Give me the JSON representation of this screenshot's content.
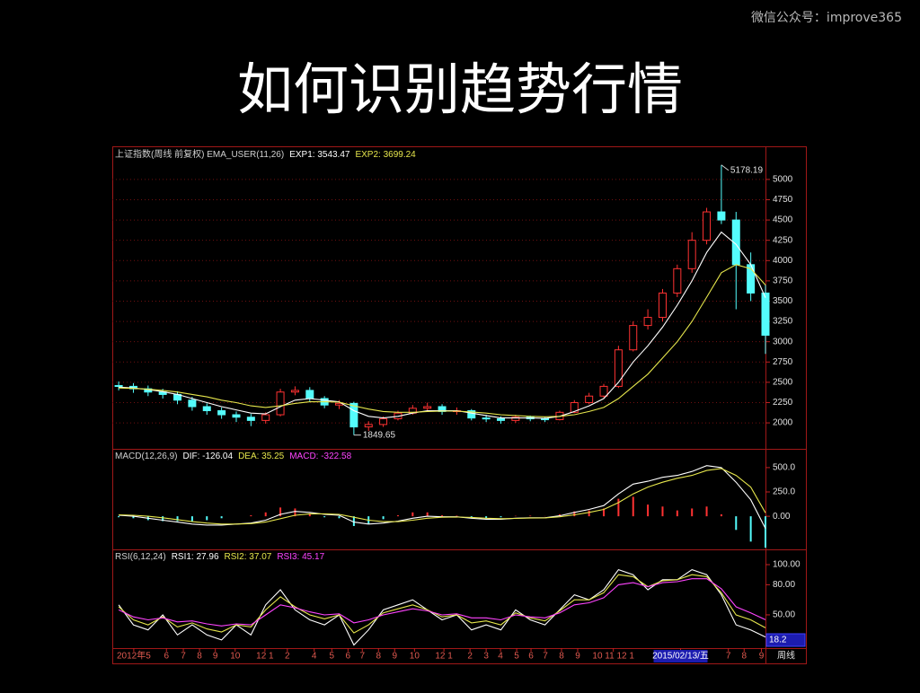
{
  "watermark": "微信公众号：improve365",
  "title": "如何识别趋势行情",
  "chart_data": [
    {
      "type": "candlestick",
      "title": "上证指数(周线 前复权) EMA_USER(11,26)",
      "x": [
        0,
        4,
        8,
        12,
        16,
        20,
        24,
        28,
        32,
        36,
        40,
        44,
        48,
        52,
        56,
        60,
        64,
        68,
        72,
        76,
        80,
        84,
        88,
        92,
        96,
        100,
        104,
        108,
        112,
        116,
        120,
        124,
        128,
        132,
        136,
        140,
        144,
        148,
        152,
        156,
        160,
        164,
        168,
        172,
        176
      ],
      "xlim": [
        -1,
        176
      ],
      "ylim": [
        1680,
        5220
      ],
      "yticks": [
        2000,
        2250,
        2500,
        2750,
        3000,
        3250,
        3500,
        3750,
        4000,
        4250,
        4500,
        4750,
        5000
      ],
      "grid": true,
      "candles": {
        "up_color": "#ff3232",
        "down_color": "#54fcfc",
        "open": [
          2460,
          2450,
          2420,
          2380,
          2350,
          2280,
          2200,
          2150,
          2100,
          2070,
          2030,
          2100,
          2380,
          2400,
          2300,
          2220,
          2240,
          1950,
          1980,
          2050,
          2120,
          2180,
          2200,
          2140,
          2150,
          2060,
          2050,
          2030,
          2070,
          2050,
          2040,
          2130,
          2250,
          2330,
          2450,
          2900,
          3200,
          3300,
          3600,
          3900,
          4250,
          4600,
          4500,
          3950,
          3600
        ],
        "high": [
          2510,
          2490,
          2460,
          2420,
          2390,
          2320,
          2240,
          2190,
          2140,
          2110,
          2130,
          2420,
          2450,
          2440,
          2330,
          2280,
          2260,
          2020,
          2080,
          2150,
          2220,
          2250,
          2230,
          2190,
          2170,
          2100,
          2080,
          2100,
          2090,
          2070,
          2150,
          2280,
          2370,
          2480,
          2950,
          3250,
          3400,
          3650,
          3950,
          4350,
          4650,
          5178.19,
          4600,
          4100,
          3700
        ],
        "low": [
          2400,
          2370,
          2330,
          2300,
          2230,
          2150,
          2100,
          2050,
          2010,
          1960,
          1990,
          2080,
          2340,
          2260,
          2180,
          2170,
          1849.65,
          1900,
          1950,
          2030,
          2100,
          2150,
          2100,
          2100,
          2030,
          2010,
          1990,
          2000,
          2020,
          2010,
          2030,
          2120,
          2230,
          2310,
          2430,
          2880,
          3150,
          3250,
          3550,
          3850,
          4200,
          4450,
          3400,
          3500,
          2850
        ],
        "close": [
          2450,
          2420,
          2380,
          2350,
          2280,
          2200,
          2150,
          2100,
          2070,
          2030,
          2100,
          2380,
          2400,
          2300,
          2220,
          2240,
          1950,
          1980,
          2050,
          2120,
          2180,
          2200,
          2140,
          2150,
          2060,
          2050,
          2030,
          2070,
          2050,
          2040,
          2130,
          2250,
          2330,
          2450,
          2900,
          3200,
          3300,
          3600,
          3900,
          4250,
          4600,
          4500,
          3950,
          3600,
          3080
        ]
      },
      "series": [
        {
          "name": "EXP1: 3543.47",
          "color": "#ffffff",
          "values": [
            2440,
            2430,
            2410,
            2385,
            2350,
            2300,
            2250,
            2200,
            2160,
            2120,
            2110,
            2200,
            2280,
            2300,
            2280,
            2260,
            2150,
            2080,
            2060,
            2080,
            2120,
            2150,
            2150,
            2150,
            2120,
            2090,
            2060,
            2060,
            2060,
            2055,
            2080,
            2140,
            2210,
            2300,
            2500,
            2750,
            2950,
            3180,
            3450,
            3750,
            4100,
            4350,
            4200,
            3950,
            3543.47
          ]
        },
        {
          "name": "EXP2: 3699.24",
          "color": "#e6e64c",
          "values": [
            2430,
            2425,
            2415,
            2400,
            2380,
            2350,
            2320,
            2280,
            2250,
            2210,
            2190,
            2210,
            2240,
            2260,
            2260,
            2255,
            2210,
            2170,
            2140,
            2130,
            2130,
            2140,
            2145,
            2145,
            2135,
            2120,
            2100,
            2090,
            2080,
            2075,
            2080,
            2100,
            2140,
            2190,
            2300,
            2450,
            2600,
            2800,
            3000,
            3250,
            3550,
            3850,
            3950,
            3900,
            3699.24
          ]
        }
      ],
      "max_label": "5178.19",
      "min_label": "1849.65"
    },
    {
      "type": "macd",
      "title": "MACD(12,26,9)",
      "x": [
        0,
        4,
        8,
        12,
        16,
        20,
        24,
        28,
        32,
        36,
        40,
        44,
        48,
        52,
        56,
        60,
        64,
        68,
        72,
        76,
        80,
        84,
        88,
        92,
        96,
        100,
        104,
        108,
        112,
        116,
        120,
        124,
        128,
        132,
        136,
        140,
        144,
        148,
        152,
        156,
        160,
        164,
        168,
        172,
        176
      ],
      "xlim": [
        -1,
        176
      ],
      "ylim": [
        -340,
        665
      ],
      "yticks": [
        {
          "value": 0,
          "label": "0.00"
        },
        {
          "value": 250,
          "label": "250.0"
        },
        {
          "value": 500,
          "label": "500.0"
        }
      ],
      "series": [
        {
          "name": "DIF: -126.04",
          "color": "#ffffff",
          "values": [
            10,
            0,
            -20,
            -40,
            -60,
            -80,
            -90,
            -90,
            -80,
            -70,
            -40,
            20,
            50,
            40,
            20,
            10,
            -60,
            -80,
            -70,
            -50,
            -20,
            0,
            -5,
            -5,
            -20,
            -30,
            -30,
            -20,
            -15,
            -15,
            5,
            40,
            70,
            110,
            230,
            330,
            360,
            400,
            420,
            460,
            520,
            500,
            350,
            170,
            -126.04
          ]
        },
        {
          "name": "DEA: 35.25",
          "color": "#e6e64c",
          "values": [
            15,
            10,
            0,
            -15,
            -35,
            -55,
            -70,
            -80,
            -80,
            -75,
            -60,
            -25,
            10,
            25,
            25,
            20,
            -10,
            -40,
            -55,
            -55,
            -40,
            -20,
            -10,
            -8,
            -12,
            -20,
            -25,
            -22,
            -18,
            -16,
            -5,
            15,
            40,
            70,
            140,
            230,
            300,
            350,
            390,
            420,
            470,
            490,
            420,
            300,
            35.25
          ]
        },
        {
          "name": "MACD: -322.58",
          "color": "#ff44ff",
          "bars": true,
          "up_color": "#ff3232",
          "down_color": "#54fcfc",
          "values": [
            -10,
            -20,
            -40,
            -50,
            -50,
            -50,
            -40,
            -20,
            0,
            10,
            40,
            90,
            80,
            30,
            -10,
            -20,
            -100,
            -80,
            -30,
            10,
            40,
            40,
            10,
            6,
            -16,
            -20,
            -10,
            4,
            6,
            2,
            20,
            50,
            60,
            80,
            180,
            200,
            120,
            100,
            60,
            80,
            100,
            20,
            -140,
            -260,
            -322.58
          ]
        }
      ]
    },
    {
      "type": "line",
      "title": "RSI(6,12,24)",
      "x": [
        0,
        4,
        8,
        12,
        16,
        20,
        24,
        28,
        32,
        36,
        40,
        44,
        48,
        52,
        56,
        60,
        64,
        68,
        72,
        76,
        80,
        84,
        88,
        92,
        96,
        100,
        104,
        108,
        112,
        116,
        120,
        124,
        128,
        132,
        136,
        140,
        144,
        148,
        152,
        156,
        160,
        164,
        168,
        172,
        176
      ],
      "xlim": [
        -1,
        176
      ],
      "ylim": [
        16.9,
        112.5
      ],
      "yticks": [
        {
          "value": 50,
          "label": "50.00"
        },
        {
          "value": 80,
          "label": "80.00"
        },
        {
          "value": 100,
          "label": "100.00"
        }
      ],
      "xticks": [
        {
          "value": 4.1,
          "label": "2012年5"
        },
        {
          "value": 13,
          "label": "6"
        },
        {
          "value": 17.6,
          "label": "7"
        },
        {
          "value": 22,
          "label": "8"
        },
        {
          "value": 26.3,
          "label": "9"
        },
        {
          "value": 31.7,
          "label": "10"
        },
        {
          "value": 39.8,
          "label": "12 1"
        },
        {
          "value": 45.9,
          "label": "2"
        },
        {
          "value": 53.2,
          "label": "4"
        },
        {
          "value": 58,
          "label": "5"
        },
        {
          "value": 62.4,
          "label": "6"
        },
        {
          "value": 66.3,
          "label": "7"
        },
        {
          "value": 70.7,
          "label": "8"
        },
        {
          "value": 75.1,
          "label": "9"
        },
        {
          "value": 80.5,
          "label": "10"
        },
        {
          "value": 88.5,
          "label": "12 1"
        },
        {
          "value": 95.6,
          "label": "2"
        },
        {
          "value": 100,
          "label": "3"
        },
        {
          "value": 103.9,
          "label": "4"
        },
        {
          "value": 108.3,
          "label": "5"
        },
        {
          "value": 112.2,
          "label": "6"
        },
        {
          "value": 116.1,
          "label": "7"
        },
        {
          "value": 120.5,
          "label": "8"
        },
        {
          "value": 124.9,
          "label": "9"
        },
        {
          "value": 134.6,
          "label": "10 11 12 1"
        },
        {
          "value": 152.9,
          "label": "2015/02/13/五",
          "highlight": true
        },
        {
          "value": 165.9,
          "label": "7"
        },
        {
          "value": 170.2,
          "label": "8"
        },
        {
          "value": 174.9,
          "label": "9"
        }
      ],
      "xlabel": "周线",
      "cursor_label": "18.2",
      "series": [
        {
          "name": "RSI1: 27.96",
          "color": "#ffffff",
          "values": [
            60,
            40,
            35,
            50,
            30,
            40,
            30,
            25,
            40,
            30,
            60,
            75,
            55,
            45,
            40,
            50,
            20,
            35,
            55,
            60,
            65,
            55,
            45,
            50,
            35,
            40,
            35,
            55,
            45,
            40,
            55,
            70,
            65,
            75,
            95,
            90,
            75,
            85,
            85,
            95,
            90,
            70,
            40,
            35,
            27.96
          ]
        },
        {
          "name": "RSI2: 37.07",
          "color": "#e6e64c",
          "values": [
            58,
            45,
            40,
            48,
            38,
            42,
            36,
            33,
            40,
            38,
            55,
            68,
            58,
            50,
            46,
            50,
            32,
            40,
            52,
            56,
            60,
            55,
            48,
            50,
            42,
            44,
            40,
            52,
            47,
            44,
            54,
            65,
            65,
            72,
            90,
            88,
            78,
            84,
            85,
            90,
            88,
            72,
            50,
            45,
            37.07
          ]
        },
        {
          "name": "RSI3: 45.17",
          "color": "#ff44ff",
          "values": [
            55,
            48,
            45,
            47,
            43,
            44,
            41,
            39,
            41,
            40,
            50,
            60,
            57,
            53,
            50,
            51,
            42,
            45,
            50,
            53,
            56,
            54,
            50,
            51,
            47,
            47,
            45,
            50,
            48,
            47,
            52,
            60,
            62,
            67,
            80,
            82,
            78,
            82,
            83,
            86,
            86,
            76,
            58,
            52,
            45.17
          ]
        }
      ]
    }
  ]
}
